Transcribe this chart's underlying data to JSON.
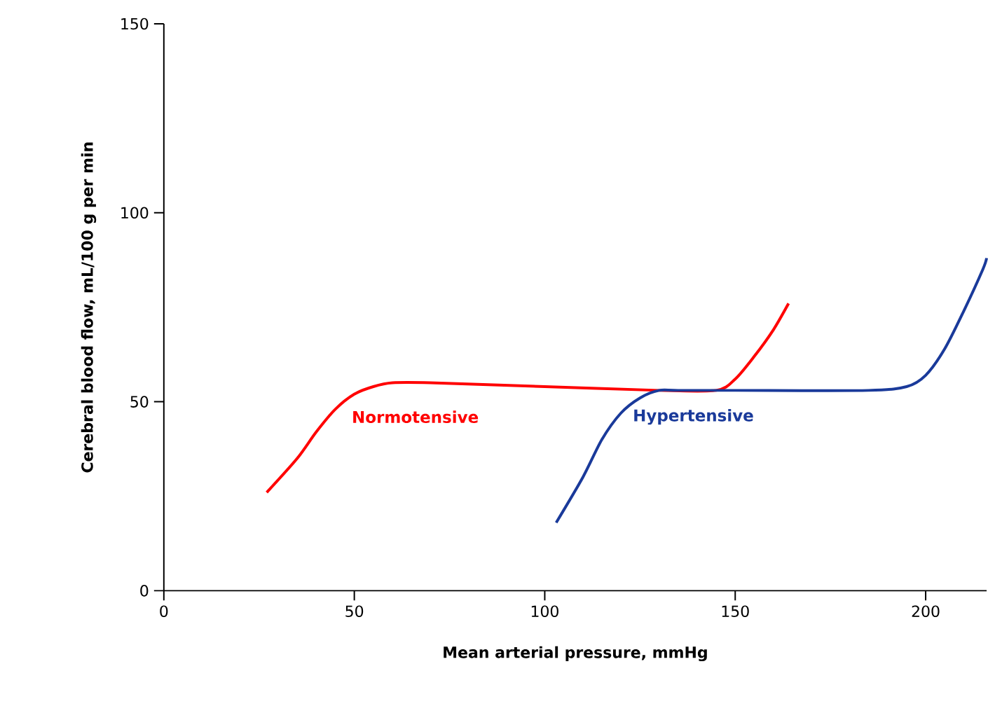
{
  "chart_data": {
    "type": "line",
    "xlabel": "Mean arterial pressure, mmHg",
    "ylabel": "Cerebral blood flow, mL/100 g per min",
    "xlim": [
      0,
      216
    ],
    "ylim": [
      0,
      150
    ],
    "xticks": [
      0,
      50,
      100,
      150,
      200
    ],
    "yticks": [
      0,
      50,
      100,
      150
    ],
    "grid": false,
    "marker": "none",
    "line_style": "solid",
    "series": [
      {
        "name": "Normotensive",
        "color": "#ff0000",
        "x": [
          27,
          35,
          40,
          45,
          50,
          55,
          60,
          70,
          100,
          130,
          145,
          150,
          155,
          160,
          164
        ],
        "values": [
          26,
          35,
          42,
          48,
          52,
          54,
          55,
          55,
          54,
          53,
          53,
          56,
          62,
          69,
          76
        ]
      },
      {
        "name": "Hypertensive",
        "color": "#1a3a9a",
        "x": [
          103,
          110,
          115,
          120,
          125,
          130,
          135,
          150,
          185,
          195,
          200,
          205,
          210,
          215,
          216
        ],
        "values": [
          18,
          30,
          40,
          47,
          51,
          53,
          53,
          53,
          53,
          54,
          57,
          64,
          74,
          85,
          88
        ]
      }
    ]
  }
}
